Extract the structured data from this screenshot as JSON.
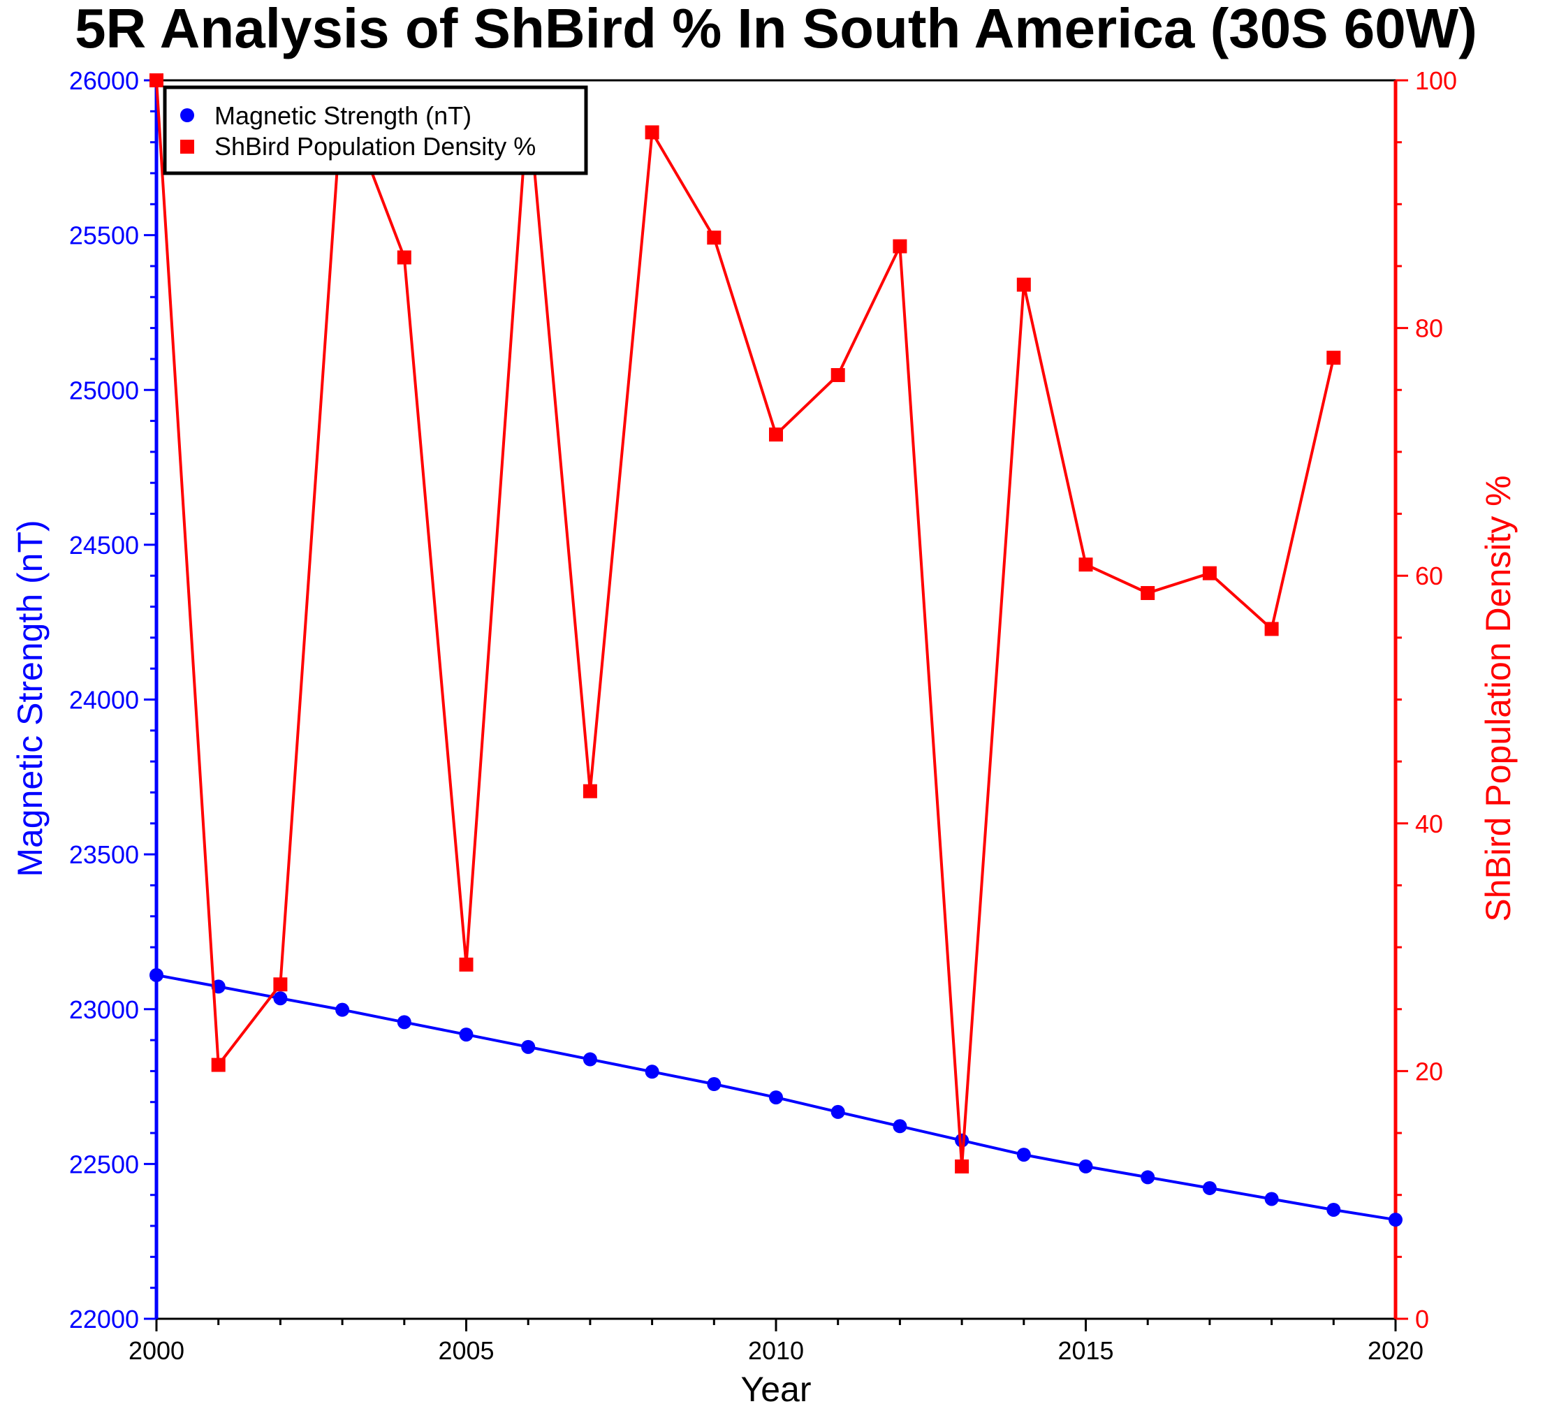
{
  "chart_data": {
    "type": "line",
    "title": "5R Analysis of ShBird % In South America (30S 60W)",
    "xlabel": "Year",
    "ylabel_left": "Magnetic Strength (nT)",
    "ylabel_right": "ShBird Population Density %",
    "xlim": [
      2000,
      2020
    ],
    "ylim_left": [
      22000,
      26000
    ],
    "ylim_right": [
      0,
      100
    ],
    "x_ticks": [
      2000,
      2005,
      2010,
      2015,
      2020
    ],
    "y_left_ticks": [
      22000,
      22500,
      23000,
      23500,
      24000,
      24500,
      25000,
      25500,
      26000
    ],
    "y_right_ticks": [
      0,
      20,
      40,
      60,
      80,
      100
    ],
    "x": [
      2000,
      2001,
      2002,
      2003,
      2004,
      2005,
      2006,
      2007,
      2008,
      2009,
      2010,
      2011,
      2012,
      2013,
      2014,
      2015,
      2016,
      2017,
      2018,
      2019,
      2020
    ],
    "legend_placement": "top-left",
    "grid": false,
    "series": [
      {
        "name": "Magnetic Strength (nT)",
        "axis": "left",
        "color": "#0000ff",
        "marker": "circle",
        "values": [
          23110,
          23073,
          23035,
          22998,
          22958,
          22918,
          22878,
          22838,
          22798,
          22758,
          22715,
          22668,
          22622,
          22576,
          22530,
          22492,
          22457,
          22422,
          22387,
          22352,
          22320
        ]
      },
      {
        "name": "ShBird Population Density %",
        "axis": "right",
        "color": "#ff0000",
        "marker": "square",
        "values": [
          100,
          20.5,
          27.0,
          98.8,
          85.7,
          28.6,
          98.4,
          42.6,
          95.8,
          87.3,
          71.4,
          76.2,
          86.6,
          12.3,
          83.5,
          60.9,
          58.6,
          60.2,
          55.7,
          77.6,
          null
        ]
      }
    ]
  }
}
